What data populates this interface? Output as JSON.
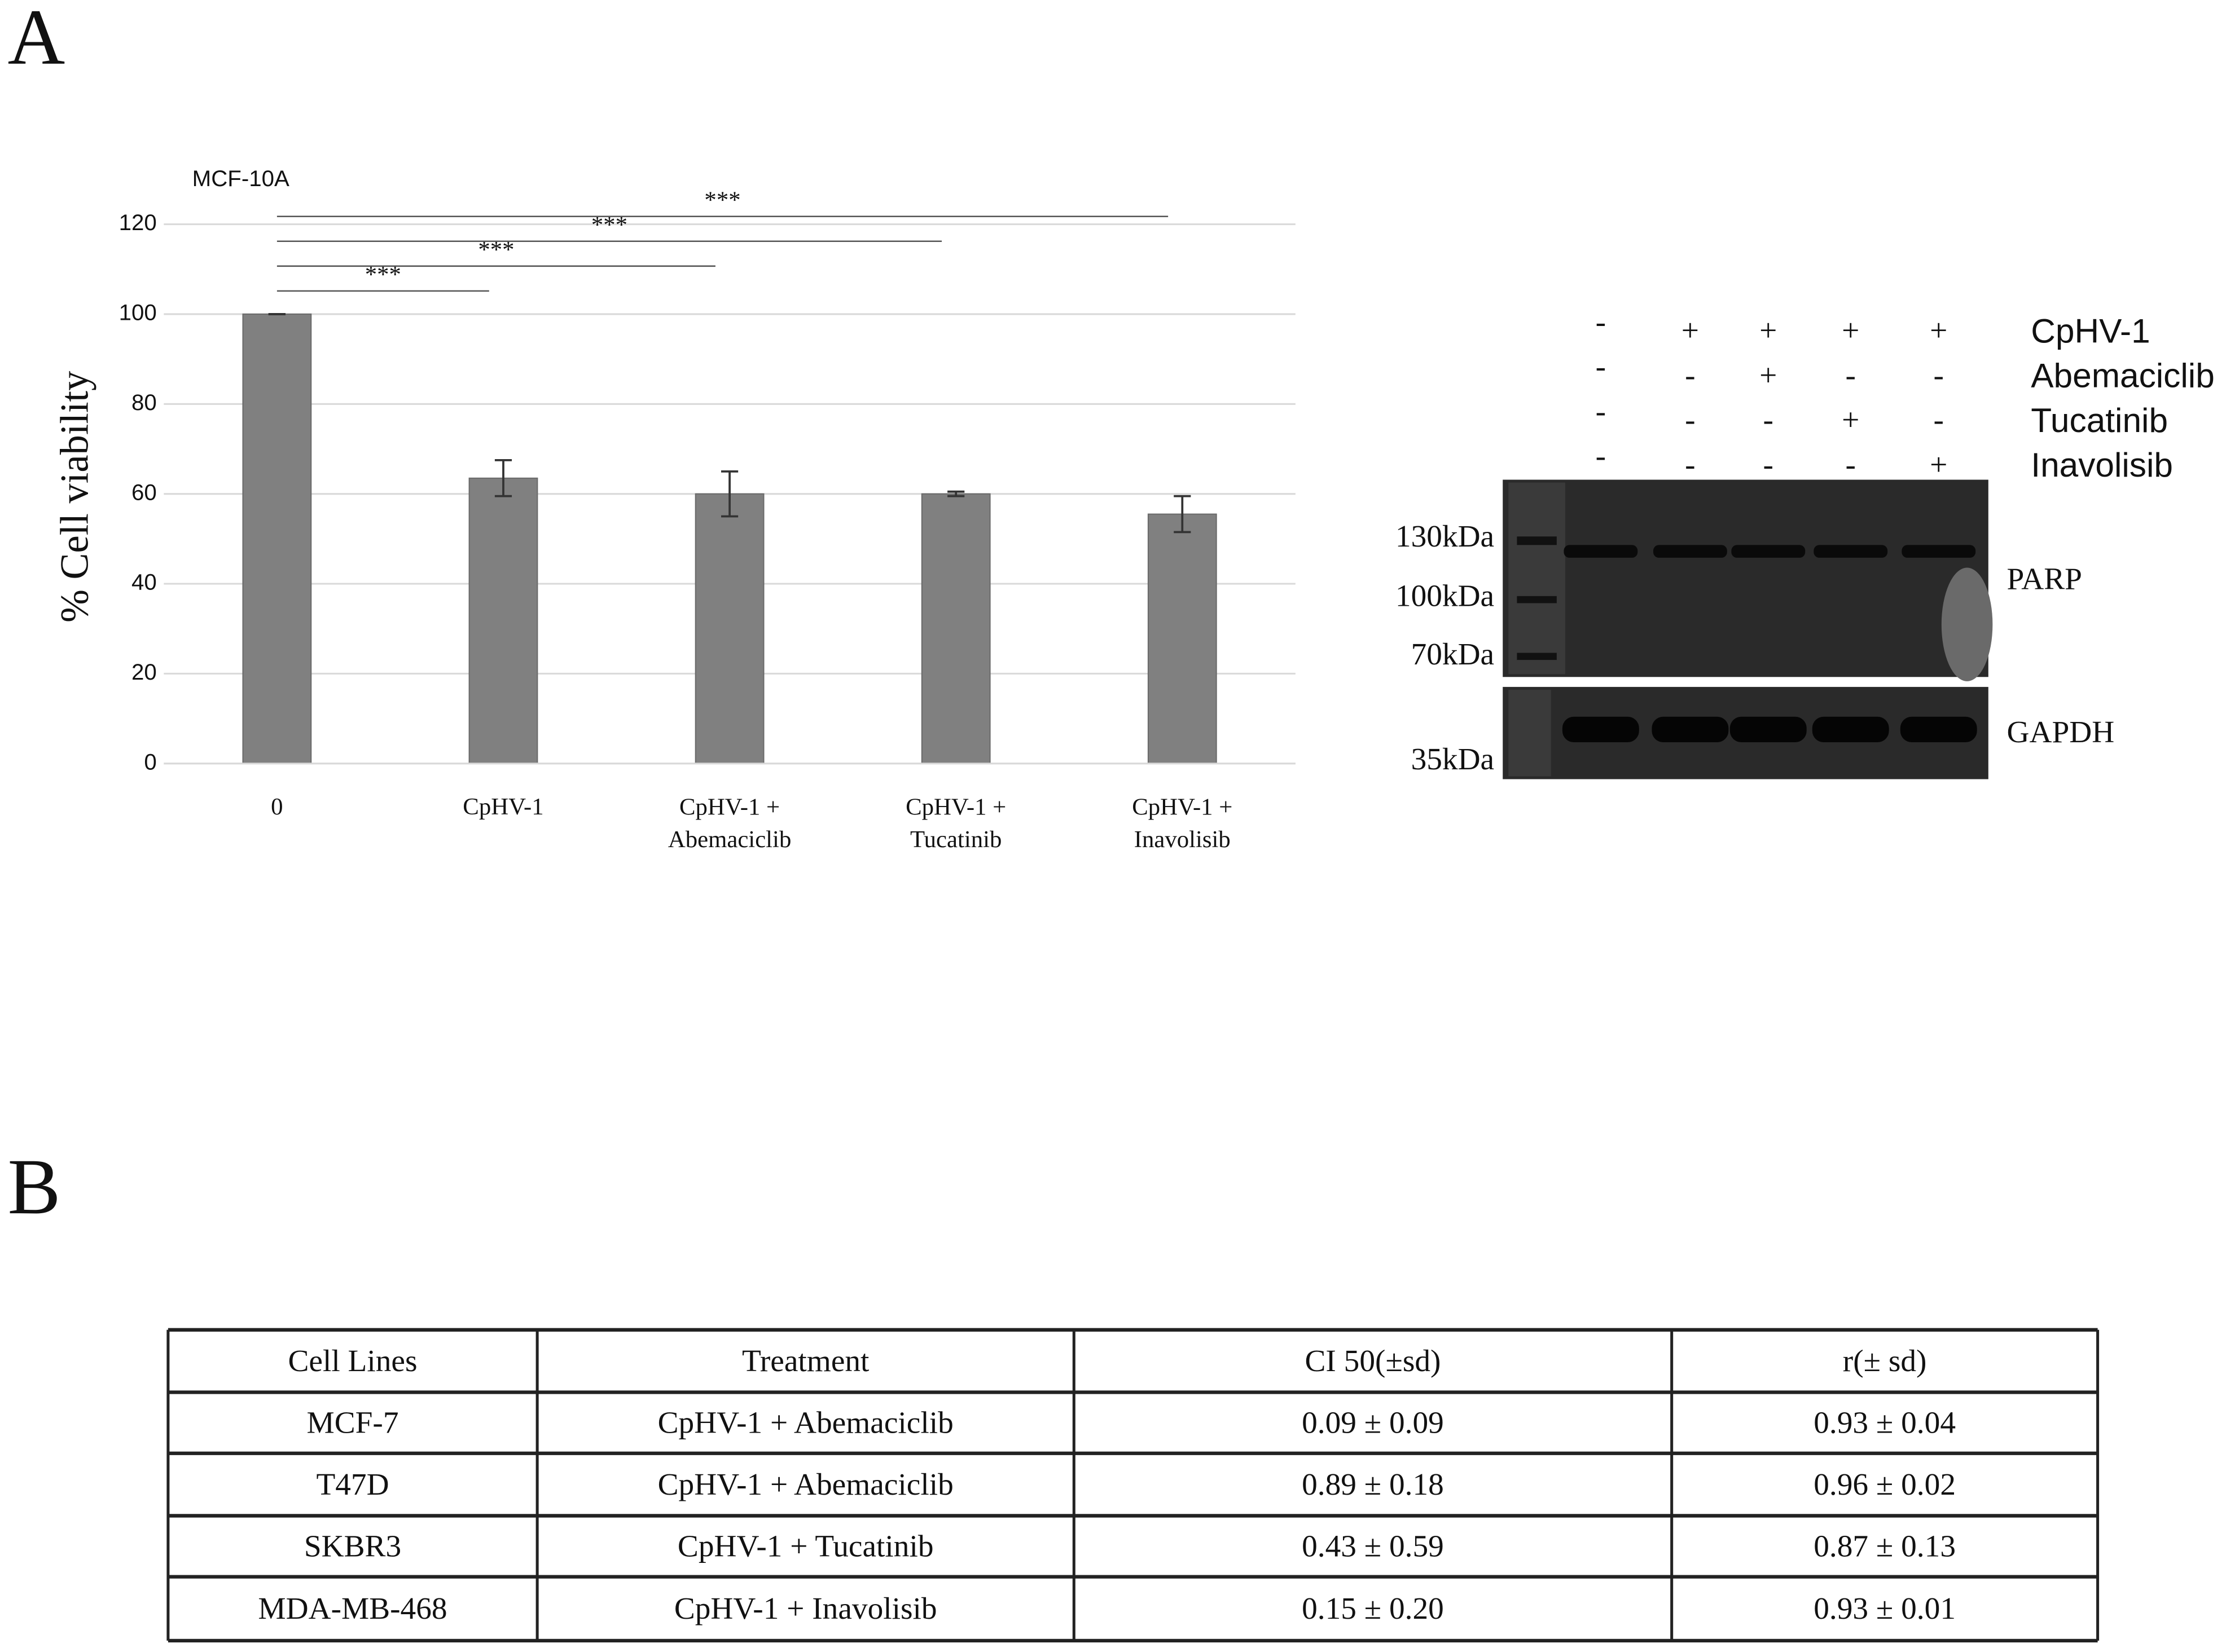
{
  "panel_labels": [
    "A",
    "B"
  ],
  "chart_data": {
    "type": "bar",
    "title": "MCF-10A",
    "ylabel": "% Cell viability",
    "categories": [
      "0",
      "CpHV-1",
      "CpHV-1 + Abemaciclib",
      "CpHV-1 + Tucatinib",
      "CpHV-1 + Inavolisib"
    ],
    "values": [
      100,
      63.5,
      60,
      60,
      55.5
    ],
    "errors": [
      0,
      4,
      5,
      0.5,
      4
    ],
    "color": "#808080",
    "ylim": [
      0,
      120
    ],
    "yticks": [
      0,
      20,
      40,
      60,
      80,
      100,
      120
    ],
    "grid": true,
    "annotations": [
      "***",
      "***",
      "***",
      "***"
    ]
  },
  "blot": {
    "treatments": [
      {
        "name": "CpHV-1",
        "signs": [
          "-",
          "+",
          "+",
          "+",
          "+"
        ]
      },
      {
        "name": "Abemaciclib",
        "signs": [
          "-",
          "-",
          "+",
          "-",
          "-"
        ]
      },
      {
        "name": "Tucatinib",
        "signs": [
          "-",
          "-",
          "-",
          "+",
          "-"
        ]
      },
      {
        "name": "Inavolisib",
        "signs": [
          "-",
          "-",
          "-",
          "-",
          "+"
        ]
      }
    ],
    "markers": [
      "130kDa",
      "100kDa",
      "70kDa",
      "35kDa"
    ],
    "bands": [
      "PARP",
      "GAPDH"
    ]
  },
  "table": {
    "header": [
      "Cell Lines",
      "Treatment",
      "CI 50(±sd)",
      "r(± sd)"
    ],
    "rows": [
      [
        "MCF-7",
        "CpHV-1 + Abemaciclib",
        "0.09 ± 0.09",
        "0.93 ± 0.04"
      ],
      [
        "T47D",
        "CpHV-1 + Abemaciclib",
        "0.89 ± 0.18",
        "0.96 ± 0.02"
      ],
      [
        "SKBR3",
        "CpHV-1 + Tucatinib",
        "0.43 ± 0.59",
        "0.87 ± 0.13"
      ],
      [
        "MDA-MB-468",
        "CpHV-1 + Inavolisib",
        "0.15 ± 0.20",
        "0.93 ± 0.01"
      ]
    ]
  }
}
